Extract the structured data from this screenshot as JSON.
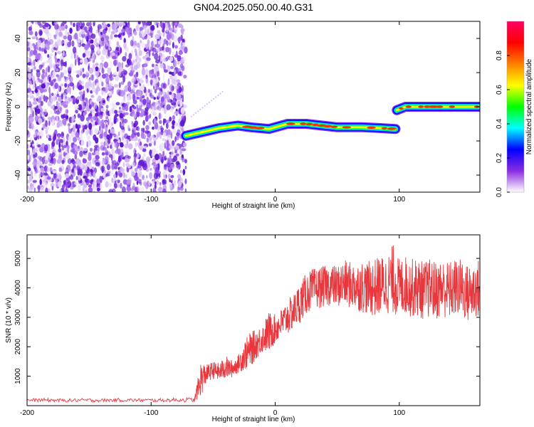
{
  "figure_title": "GN04.2025.050.00.40.G31",
  "chart_data": [
    {
      "type": "heatmap",
      "title": "GN04.2025.050.00.40.G31",
      "xlabel": "Height of straight line (km)",
      "ylabel": "Frequency (Hz)",
      "xlim": [
        -200,
        165
      ],
      "ylim": [
        -50,
        50
      ],
      "x_ticks": [
        -200,
        -100,
        0,
        100
      ],
      "y_ticks": [
        -40,
        -20,
        0,
        20,
        40
      ],
      "colorbar": {
        "label": "Normalized spectral amplitude",
        "range": [
          0,
          1
        ],
        "ticks": [
          "0.0",
          "0.2",
          "0.4",
          "0.6",
          "0.8"
        ],
        "colors": [
          "#ffffff",
          "#8a2be2",
          "#0000ff",
          "#00ffff",
          "#00ff00",
          "#ffff00",
          "#ff8000",
          "#ff0000",
          "#ff0066"
        ]
      },
      "noise_region_x": [
        -200,
        -72
      ],
      "noise_colors": [
        "#ebe0fb",
        "#d9c2f7",
        "#c7a3f2",
        "#a874ec",
        "#8f4be6",
        "#6a1fdc",
        "#5a12cc"
      ],
      "trace": [
        {
          "x": -72,
          "freq": -17
        },
        {
          "x": -60,
          "freq": -15
        },
        {
          "x": -45,
          "freq": -12.5
        },
        {
          "x": -30,
          "freq": -11
        },
        {
          "x": -20,
          "freq": -12
        },
        {
          "x": -5,
          "freq": -13
        },
        {
          "x": 10,
          "freq": -10
        },
        {
          "x": 25,
          "freq": -10
        },
        {
          "x": 50,
          "freq": -12
        },
        {
          "x": 70,
          "freq": -12
        },
        {
          "x": 85,
          "freq": -12.5
        },
        {
          "x": 97,
          "freq": -13
        },
        {
          "x": 98,
          "freq": -2
        },
        {
          "x": 105,
          "freq": 0
        },
        {
          "x": 130,
          "freq": 0
        },
        {
          "x": 165,
          "freq": 0
        }
      ]
    },
    {
      "type": "line",
      "xlabel": "Height of straight line (km)",
      "ylabel": "SNR (10 * v/v)",
      "xlim": [
        -200,
        165
      ],
      "ylim": [
        0,
        5800
      ],
      "x_ticks": [
        -200,
        -100,
        0,
        100
      ],
      "y_ticks": [
        1000,
        2000,
        3000,
        4000,
        5000
      ],
      "series": [
        {
          "color": "#e8383d",
          "x": [
            -200,
            -185,
            -170,
            -155,
            -140,
            -125,
            -110,
            -95,
            -80,
            -65,
            -60,
            -55,
            -50,
            -45,
            -40,
            -35,
            -30,
            -25,
            -20,
            -15,
            -10,
            -5,
            0,
            5,
            10,
            15,
            20,
            25,
            30,
            35,
            40,
            45,
            50,
            55,
            60,
            65,
            70,
            75,
            80,
            85,
            90,
            95,
            100,
            105,
            110,
            115,
            120,
            125,
            130,
            135,
            140,
            145,
            150,
            155,
            160,
            165
          ],
          "values": [
            180,
            190,
            175,
            185,
            180,
            190,
            185,
            180,
            195,
            200,
            900,
            1100,
            1200,
            1150,
            1300,
            1250,
            1400,
            1700,
            1900,
            2100,
            2300,
            2500,
            2600,
            2800,
            3000,
            3200,
            3500,
            3800,
            3950,
            4000,
            4050,
            4100,
            4050,
            4150,
            4100,
            4050,
            4050,
            4000,
            4000,
            4100,
            4100,
            4300,
            4000,
            4100,
            4000,
            4000,
            3900,
            4000,
            3900,
            4000,
            3900,
            4000,
            4000,
            3800,
            3900,
            4000
          ],
          "spread": [
            60,
            60,
            60,
            60,
            60,
            60,
            60,
            60,
            70,
            80,
            600,
            300,
            300,
            300,
            400,
            300,
            300,
            500,
            600,
            500,
            500,
            700,
            500,
            500,
            600,
            600,
            700,
            700,
            700,
            700,
            700,
            700,
            700,
            800,
            800,
            800,
            900,
            900,
            1000,
            1000,
            1000,
            1200,
            1000,
            1000,
            1000,
            1000,
            1000,
            1000,
            1000,
            1000,
            1000,
            1000,
            1000,
            1000,
            1000,
            1000
          ]
        }
      ]
    }
  ]
}
